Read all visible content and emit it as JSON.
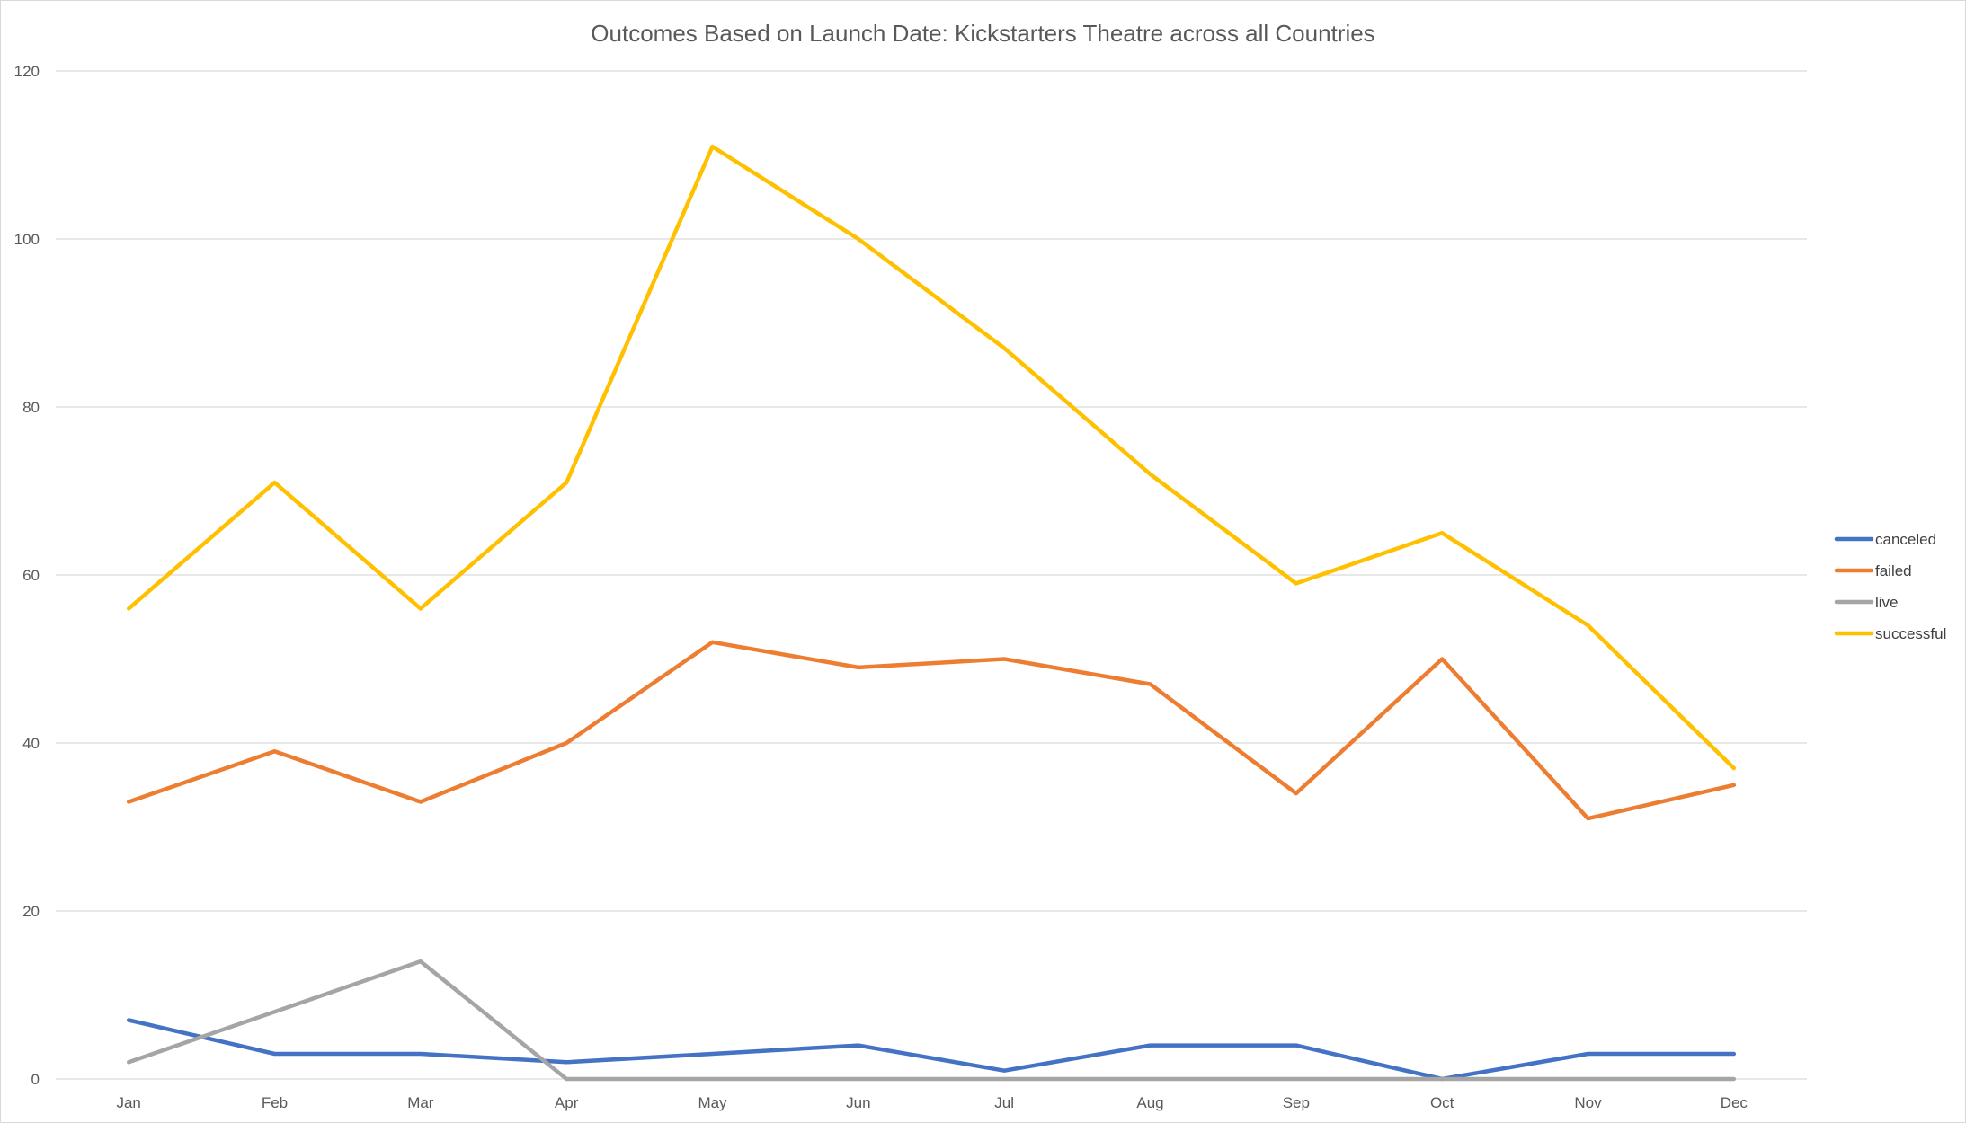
{
  "chart_data": {
    "type": "line",
    "title": "Outcomes Based on Launch Date: Kickstarters Theatre across all Countries",
    "xlabel": "",
    "ylabel": "",
    "categories": [
      "Jan",
      "Feb",
      "Mar",
      "Apr",
      "May",
      "Jun",
      "Jul",
      "Aug",
      "Sep",
      "Oct",
      "Nov",
      "Dec"
    ],
    "ylim": [
      0,
      120
    ],
    "yticks": [
      0,
      20,
      40,
      60,
      80,
      100,
      120
    ],
    "grid": true,
    "legend_position": "right",
    "series": [
      {
        "name": "canceled",
        "color": "#4472c4",
        "values": [
          7,
          3,
          3,
          2,
          3,
          4,
          1,
          4,
          4,
          0,
          3,
          3
        ]
      },
      {
        "name": "failed",
        "color": "#ed7d31",
        "values": [
          33,
          39,
          33,
          40,
          52,
          49,
          50,
          47,
          34,
          50,
          31,
          35
        ]
      },
      {
        "name": "live",
        "color": "#a5a5a5",
        "values": [
          2,
          8,
          14,
          0,
          0,
          0,
          0,
          0,
          0,
          0,
          0,
          0
        ]
      },
      {
        "name": "successful",
        "color": "#ffc000",
        "values": [
          56,
          71,
          56,
          71,
          111,
          100,
          87,
          72,
          59,
          65,
          54,
          37
        ]
      }
    ]
  }
}
